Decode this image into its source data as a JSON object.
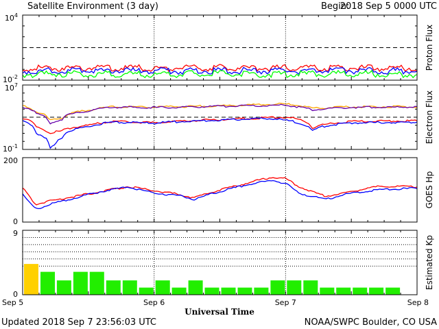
{
  "header": {
    "title": "Satellite Environment (3 day)",
    "begin_label": "Begin:",
    "begin_value": "2018 Sep 5 0000 UTC"
  },
  "footer": {
    "updated": "Updated 2018 Sep  7 23:56:03 UTC",
    "credit": "NOAA/SWPC Boulder, CO USA"
  },
  "colors": {
    "red": "#ff0000",
    "blue": "#0000ff",
    "green": "#00ff00",
    "orange": "#ffa500",
    "purple": "#6600aa",
    "kp_normal": "#22ee00",
    "kp_high": "#ffd000"
  },
  "chart_data": [
    {
      "id": "proton",
      "type": "line",
      "ylabel": "Proton Flux",
      "yscale": "log",
      "ylim": [
        0.01,
        10000
      ],
      "ytick_labels": [
        {
          "base": "10",
          "exp": "4",
          "value": 10000
        },
        {
          "base": "10",
          "exp": "-2",
          "value": 0.01
        }
      ],
      "threshold": 10,
      "series": [
        {
          "color_key": "red",
          "x": [
            0,
            0.5,
            1,
            1.5,
            2,
            2.5,
            3
          ],
          "y": [
            0.13,
            0.14,
            0.13,
            0.14,
            0.13,
            0.14,
            0.13
          ]
        },
        {
          "color_key": "blue",
          "x": [
            0,
            0.5,
            1,
            1.5,
            2,
            2.5,
            3
          ],
          "y": [
            0.07,
            0.075,
            0.07,
            0.075,
            0.07,
            0.075,
            0.07
          ]
        },
        {
          "color_key": "green",
          "x": [
            0,
            0.5,
            1,
            1.5,
            2,
            2.5,
            3
          ],
          "y": [
            0.035,
            0.04,
            0.035,
            0.04,
            0.035,
            0.04,
            0.035
          ]
        }
      ]
    },
    {
      "id": "electron",
      "type": "line",
      "ylabel": "Electron Flux",
      "yscale": "log",
      "ylim": [
        0.1,
        10000000
      ],
      "ytick_labels": [
        {
          "base": "10",
          "exp": "7",
          "value": 10000000
        },
        {
          "base": "10",
          "exp": "-1",
          "value": 0.1
        }
      ],
      "threshold": 1000,
      "series": [
        {
          "color_key": "orange",
          "x": [
            0,
            0.1,
            0.2,
            0.3,
            0.5,
            0.7,
            1.0,
            1.5,
            1.9,
            2.0,
            2.2,
            2.5,
            3.0
          ],
          "y": [
            25000,
            5000,
            400,
            800,
            7000,
            20000,
            18000,
            25000,
            40000,
            45000,
            12000,
            20000,
            20000
          ]
        },
        {
          "color_key": "purple",
          "x": [
            0,
            0.1,
            0.2,
            0.3,
            0.5,
            0.7,
            1.0,
            1.5,
            1.9,
            2.0,
            2.2,
            2.5,
            3.0
          ],
          "y": [
            20000,
            3000,
            150,
            500,
            6000,
            18000,
            16000,
            22000,
            30000,
            30000,
            8000,
            17000,
            18000
          ]
        },
        {
          "color_key": "red",
          "x": [
            0,
            0.1,
            0.2,
            0.3,
            0.5,
            0.7,
            1.0,
            1.5,
            1.9,
            2.0,
            2.2,
            2.5,
            3.0
          ],
          "y": [
            700,
            60,
            10,
            20,
            100,
            300,
            200,
            500,
            900,
            1000,
            40,
            300,
            350
          ]
        },
        {
          "color_key": "blue",
          "x": [
            0,
            0.1,
            0.2,
            0.25,
            0.3,
            0.5,
            0.7,
            1.0,
            1.5,
            1.9,
            2.0,
            2.2,
            2.5,
            3.0
          ],
          "y": [
            300,
            10,
            0.1,
            0.3,
            3,
            60,
            250,
            180,
            450,
            700,
            400,
            15,
            200,
            250
          ]
        }
      ]
    },
    {
      "id": "hp",
      "type": "line",
      "ylabel": "GOES Hp",
      "yscale": "linear",
      "ylim": [
        0,
        200
      ],
      "ytick_labels": [
        {
          "text": "200",
          "value": 200
        },
        {
          "text": "0",
          "value": 0
        }
      ],
      "series": [
        {
          "color_key": "red",
          "x": [
            0,
            0.1,
            0.2,
            0.4,
            0.6,
            0.8,
            1.0,
            1.2,
            1.3,
            1.5,
            1.7,
            1.9,
            2.0,
            2.1,
            2.3,
            2.5,
            2.7,
            3.0
          ],
          "y": [
            105,
            55,
            65,
            80,
            95,
            110,
            98,
            85,
            75,
            100,
            120,
            140,
            135,
            110,
            80,
            95,
            110,
            110
          ]
        },
        {
          "color_key": "blue",
          "x": [
            0,
            0.1,
            0.2,
            0.4,
            0.6,
            0.8,
            1.0,
            1.2,
            1.3,
            1.5,
            1.7,
            1.9,
            2.0,
            2.1,
            2.3,
            2.5,
            2.7,
            3.0
          ],
          "y": [
            85,
            40,
            55,
            75,
            95,
            110,
            90,
            82,
            70,
            95,
            115,
            130,
            120,
            90,
            70,
            90,
            100,
            105
          ]
        }
      ]
    },
    {
      "id": "kp",
      "type": "bar",
      "ylabel": "Estimated Kp",
      "ylim": [
        0,
        9
      ],
      "ytick_labels": [
        {
          "text": "9",
          "value": 9
        },
        {
          "text": "0",
          "value": 0
        }
      ],
      "grid_levels": [
        4,
        5,
        6,
        7,
        8
      ],
      "interval_hours": 3,
      "values": [
        4.3,
        3.2,
        2,
        3.2,
        3.2,
        2,
        2,
        1,
        2,
        1,
        2,
        1,
        1,
        1,
        1,
        2,
        2,
        2,
        1,
        1,
        1,
        1,
        1,
        0
      ],
      "high_threshold": 4
    }
  ],
  "x_axis": {
    "title": "Universal Time",
    "labels": [
      "Sep 5",
      "Sep 6",
      "Sep 7",
      "Sep 8"
    ]
  }
}
